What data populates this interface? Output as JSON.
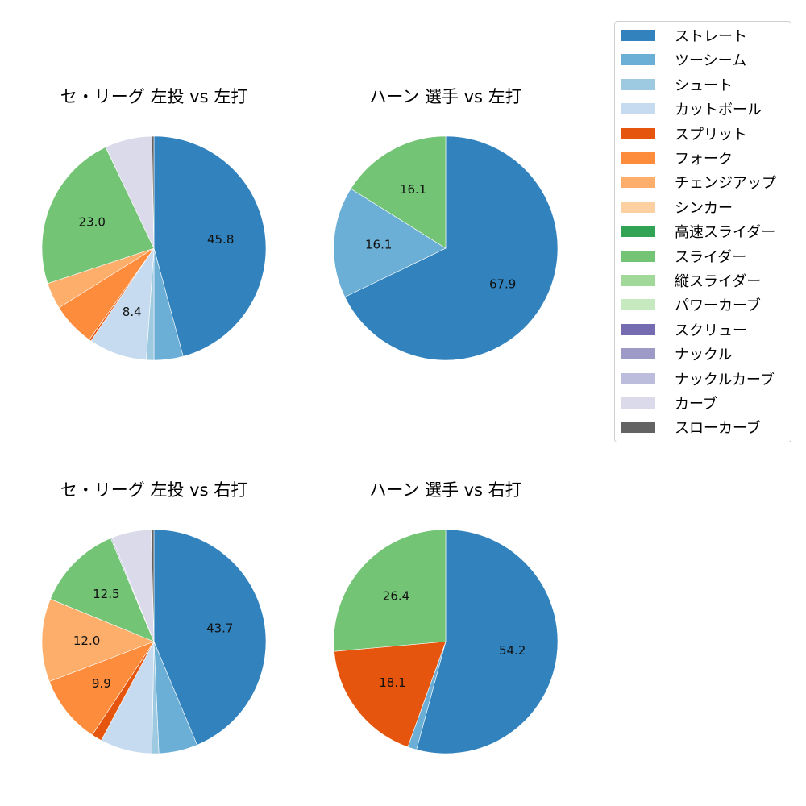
{
  "legend": {
    "items": [
      {
        "label": "ストレート",
        "color": "#3182bd"
      },
      {
        "label": "ツーシーム",
        "color": "#6baed6"
      },
      {
        "label": "シュート",
        "color": "#9ecae1"
      },
      {
        "label": "カットボール",
        "color": "#c6dbef"
      },
      {
        "label": "スプリット",
        "color": "#e6550d"
      },
      {
        "label": "フォーク",
        "color": "#fd8d3c"
      },
      {
        "label": "チェンジアップ",
        "color": "#fdae6b"
      },
      {
        "label": "シンカー",
        "color": "#fdd0a2"
      },
      {
        "label": "高速スライダー",
        "color": "#31a354"
      },
      {
        "label": "スライダー",
        "color": "#74c476"
      },
      {
        "label": "縦スライダー",
        "color": "#a1d99b"
      },
      {
        "label": "パワーカーブ",
        "color": "#c7e9c0"
      },
      {
        "label": "スクリュー",
        "color": "#756bb1"
      },
      {
        "label": "ナックル",
        "color": "#9e9ac8"
      },
      {
        "label": "ナックルカーブ",
        "color": "#bcbddc"
      },
      {
        "label": "カーブ",
        "color": "#dadaeb"
      },
      {
        "label": "スローカーブ",
        "color": "#636363"
      }
    ]
  },
  "chart_data": [
    {
      "type": "pie",
      "title": "セ・リーグ 左投 vs 左打",
      "categories": [
        "ストレート",
        "ツーシーム",
        "シュート",
        "カットボール",
        "スプリット",
        "フォーク",
        "チェンジアップ",
        "スライダー",
        "カーブ",
        "スローカーブ"
      ],
      "values": [
        45.8,
        4.2,
        1.1,
        8.4,
        0.3,
        6.3,
        3.8,
        23.0,
        6.8,
        0.3
      ],
      "labels_shown": [
        "45.8",
        "",
        "",
        "8.4",
        "",
        "",
        "",
        "23.0",
        "",
        ""
      ],
      "start_angle": 90,
      "direction": "clockwise"
    },
    {
      "type": "pie",
      "title": "ハーン 選手 vs 左打",
      "categories": [
        "ストレート",
        "ツーシーム",
        "スライダー"
      ],
      "values": [
        67.9,
        16.1,
        16.1
      ],
      "labels_shown": [
        "67.9",
        "16.1",
        "16.1"
      ],
      "start_angle": 90,
      "direction": "clockwise"
    },
    {
      "type": "pie",
      "title": "セ・リーグ 左投 vs 右打",
      "categories": [
        "ストレート",
        "ツーシーム",
        "シュート",
        "カットボール",
        "スプリット",
        "フォーク",
        "チェンジアップ",
        "スライダー",
        "ナックルカーブ",
        "カーブ",
        "スローカーブ"
      ],
      "values": [
        43.7,
        5.6,
        1.0,
        7.5,
        1.5,
        9.9,
        12.0,
        12.5,
        0.2,
        5.7,
        0.4
      ],
      "labels_shown": [
        "43.7",
        "",
        "",
        "",
        "",
        "9.9",
        "12.0",
        "12.5",
        "",
        "",
        ""
      ],
      "start_angle": 90,
      "direction": "clockwise"
    },
    {
      "type": "pie",
      "title": "ハーン 選手 vs 右打",
      "categories": [
        "ストレート",
        "ツーシーム",
        "スプリット",
        "スライダー"
      ],
      "values": [
        54.2,
        1.3,
        18.1,
        26.4
      ],
      "labels_shown": [
        "54.2",
        "",
        "18.1",
        "26.4"
      ],
      "start_angle": 90,
      "direction": "clockwise"
    }
  ],
  "charts": [
    {
      "title": "セ・リーグ 左投 vs 左打"
    },
    {
      "title": "ハーン 選手 vs 左打"
    },
    {
      "title": "セ・リーグ 左投 vs 右打"
    },
    {
      "title": "ハーン 選手 vs 右打"
    }
  ]
}
